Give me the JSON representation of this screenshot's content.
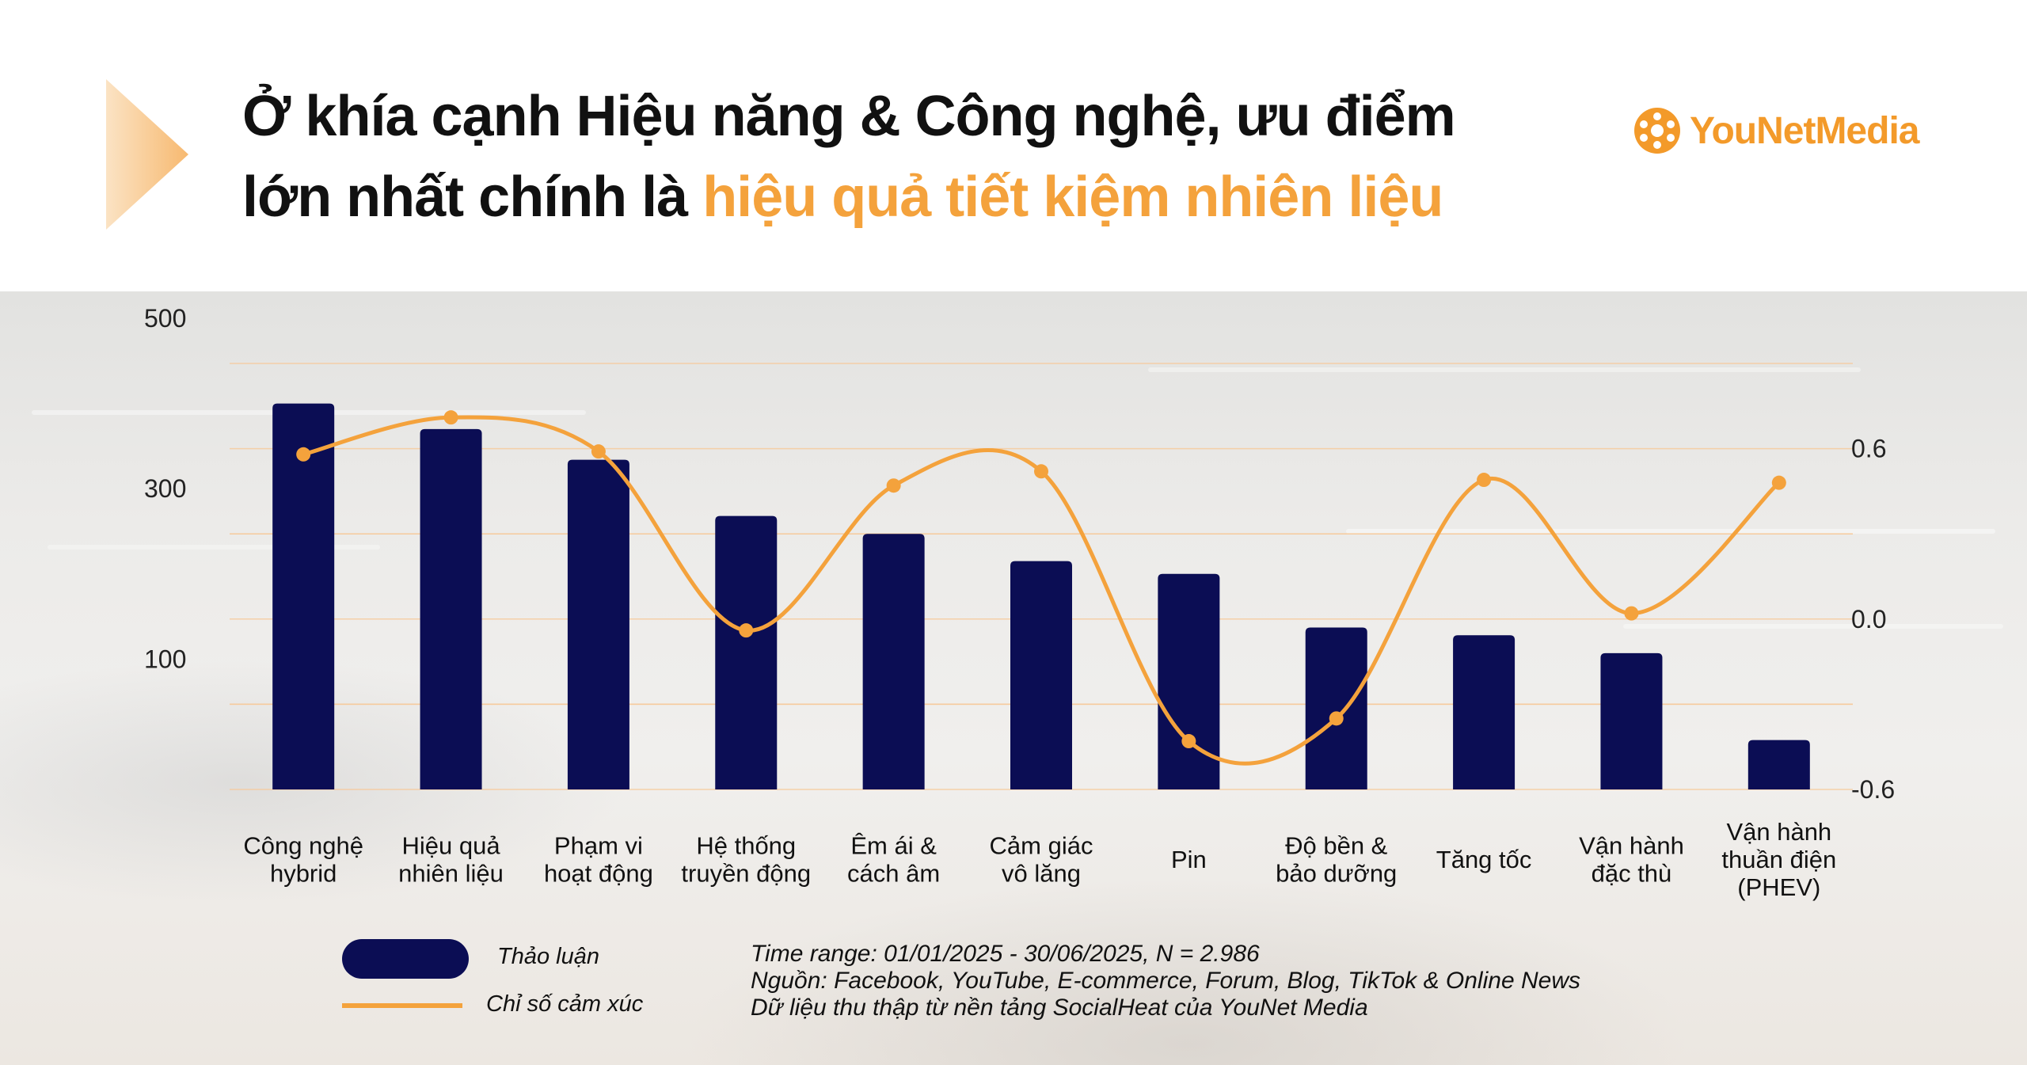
{
  "header": {
    "title_line1": "Ở khía cạnh Hiệu năng & Công nghệ, ưu điểm",
    "title_line2_plain": "lớn nhất chính là ",
    "title_line2_accent": "hiệu quả tiết kiệm nhiên liệu",
    "brand_name_a": "YouNet",
    "brand_name_b": "Media",
    "brand_icon": "younet-logo-icon"
  },
  "colors": {
    "bar": "#0b0d54",
    "line": "#f4a23c",
    "accent": "#f4a23c",
    "title": "#111111"
  },
  "chart_data": {
    "type": "bar+line",
    "categories": [
      [
        "Công nghệ",
        "hybrid"
      ],
      [
        "Hiệu quả",
        "nhiên liệu"
      ],
      [
        "Phạm vi",
        "hoạt động"
      ],
      [
        "Hệ thống",
        "truyền động"
      ],
      [
        "Êm ái &",
        "cách âm"
      ],
      [
        "Cảm giác",
        "vô lăng"
      ],
      [
        "Pin"
      ],
      [
        "Độ bền &",
        "bảo dưỡng"
      ],
      [
        "Tăng tốc"
      ],
      [
        "Vận hành",
        "đặc thù"
      ],
      [
        "Vận hành",
        "thuần điện",
        "(PHEV)"
      ]
    ],
    "series": [
      {
        "name": "Thảo luận",
        "type": "bar",
        "axis": "left",
        "values": [
          453,
          423,
          387,
          321,
          300,
          268,
          253,
          190,
          181,
          160,
          58
        ]
      },
      {
        "name": "Chỉ số cảm xúc",
        "type": "line",
        "axis": "right",
        "values": [
          0.58,
          0.71,
          0.59,
          -0.04,
          0.47,
          0.52,
          -0.43,
          -0.35,
          0.49,
          0.02,
          0.48
        ]
      }
    ],
    "y_left": {
      "min": 0,
      "max": 500,
      "ticks": [
        "500",
        "300",
        "100"
      ],
      "tick_values": [
        500,
        300,
        100
      ]
    },
    "y_right": {
      "min": -0.6,
      "max": 0.9,
      "ticks": [
        "0.6",
        "0.0",
        "-0.6"
      ],
      "tick_values": [
        0.6,
        0.0,
        -0.6
      ]
    },
    "grid": true,
    "legend_position": "bottom-left"
  },
  "legend": {
    "bar_label": "Thảo luận",
    "line_label": "Chỉ số cảm xúc"
  },
  "footnotes": {
    "line1": "Time range: 01/01/2025 - 30/06/2025, N = 2.986",
    "line2": "Nguồn: Facebook, YouTube, E-commerce, Forum, Blog, TikTok & Online News",
    "line3": "Dữ liệu thu thập từ nền tảng SocialHeat của YouNet Media"
  }
}
